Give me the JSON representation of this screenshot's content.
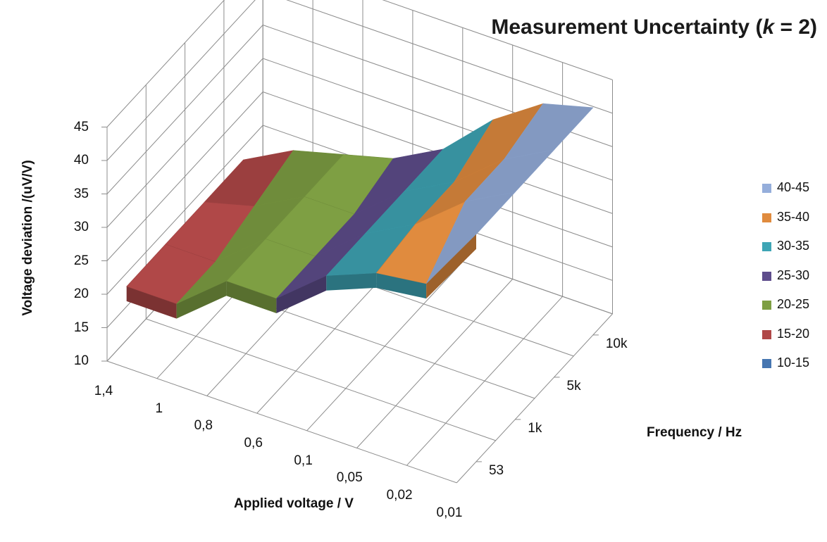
{
  "chart_data": {
    "type": "surface",
    "title": {
      "prefix": "Measurement Uncertainty (",
      "k": "k",
      "suffix": " = 2)"
    },
    "ylabel": "Voltage deviation /(uV/V)",
    "xlabel": "Applied voltage / V",
    "zlabel": "Frequency / Hz",
    "applied_voltage_ticks": [
      "1,4",
      "1",
      "0,8",
      "0,6",
      "0,1",
      "0,05",
      "0,02",
      "0,01"
    ],
    "frequency_ticks": [
      "53",
      "1k",
      "5k",
      "10k"
    ],
    "value_axis": {
      "min": 10,
      "max": 45,
      "step": 5,
      "ticks": [
        "10",
        "15",
        "20",
        "25",
        "30",
        "35",
        "40",
        "45"
      ]
    },
    "grid": true,
    "legend_position": "right",
    "legend": [
      {
        "label": "40-45",
        "color": "#95aedb"
      },
      {
        "label": "35-40",
        "color": "#e08b3e"
      },
      {
        "label": "30-35",
        "color": "#3ea5b5"
      },
      {
        "label": "25-30",
        "color": "#5e4d8c"
      },
      {
        "label": "20-25",
        "color": "#7e9f43"
      },
      {
        "label": "15-20",
        "color": "#b04848"
      },
      {
        "label": "10-15",
        "color": "#4676b1"
      }
    ],
    "series": [
      {
        "name": "53",
        "values": [
          18,
          18,
          24,
          24,
          30,
          33,
          34,
          44
        ]
      },
      {
        "name": "1k",
        "values": [
          18,
          18,
          24,
          24,
          30,
          34,
          40,
          44
        ]
      },
      {
        "name": "5k",
        "values": [
          18,
          20,
          24,
          24,
          30,
          34,
          40,
          44
        ]
      },
      {
        "name": "10k",
        "values": [
          18,
          22,
          24,
          26,
          30,
          37,
          42,
          44
        ]
      }
    ]
  }
}
